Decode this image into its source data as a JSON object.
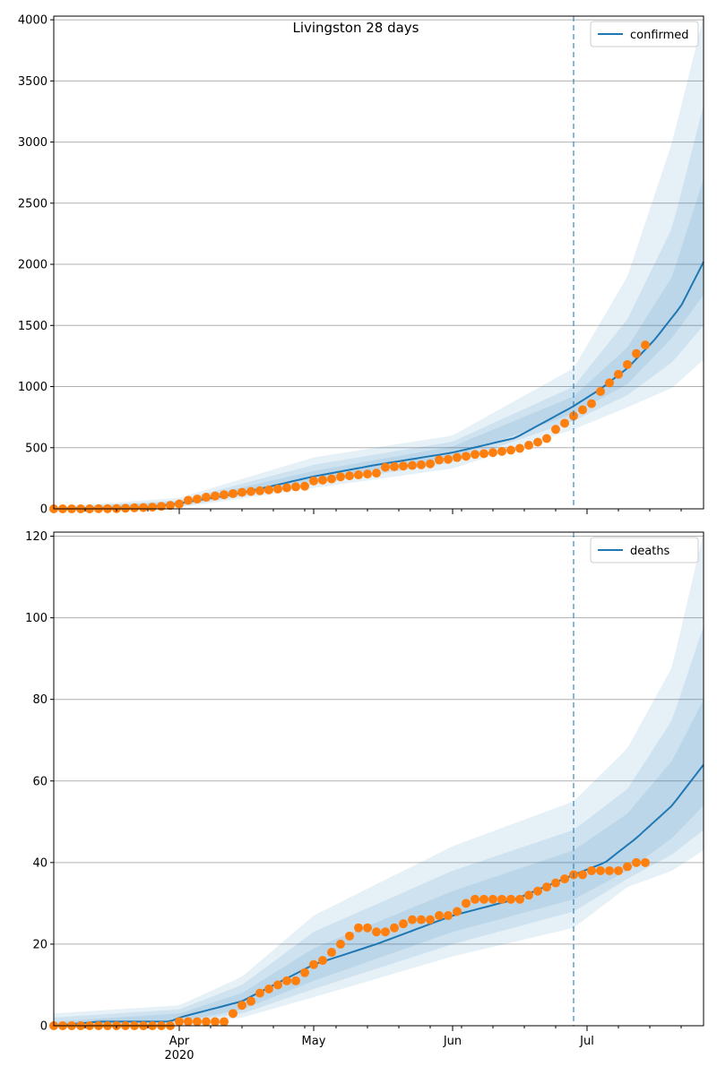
{
  "title": "Livingston 28 days",
  "chart_data": [
    {
      "type": "line",
      "title": "Livingston 28 days",
      "x_axis": {
        "type": "date",
        "range": [
          "2020-03-04",
          "2020-07-27"
        ],
        "ticks": [
          {
            "date": "2020-04-01",
            "label": "Apr",
            "sublabel": "2020"
          },
          {
            "date": "2020-05-01",
            "label": "May"
          },
          {
            "date": "2020-06-01",
            "label": "Jun"
          },
          {
            "date": "2020-07-01",
            "label": "Jul"
          }
        ]
      },
      "y_axis": {
        "range": [
          0,
          4030
        ],
        "ticks": [
          0,
          500,
          1000,
          1500,
          2000,
          2500,
          3000,
          3500,
          4000
        ],
        "grid": true
      },
      "vline_date": "2020-06-28",
      "legend": {
        "position": "top-right",
        "entries": [
          "confirmed"
        ]
      },
      "colors": {
        "line": "#1f77b4",
        "observed": "#ff7f0e",
        "band": "#1f77b4"
      },
      "model_points": [
        [
          "2020-03-04",
          1
        ],
        [
          "2020-03-25",
          12
        ],
        [
          "2020-04-01",
          45
        ],
        [
          "2020-04-15",
          130
        ],
        [
          "2020-05-01",
          265
        ],
        [
          "2020-05-15",
          360
        ],
        [
          "2020-06-01",
          460
        ],
        [
          "2020-06-15",
          580
        ],
        [
          "2020-06-28",
          840
        ],
        [
          "2020-07-04",
          980
        ],
        [
          "2020-07-10",
          1150
        ],
        [
          "2020-07-16",
          1380
        ],
        [
          "2020-07-22",
          1660
        ],
        [
          "2020-07-27",
          2020
        ]
      ],
      "bands": [
        {
          "upper": [
            [
              "2020-03-04",
              15
            ],
            [
              "2020-04-01",
              90
            ],
            [
              "2020-05-01",
              420
            ],
            [
              "2020-06-01",
              600
            ],
            [
              "2020-06-28",
              1150
            ],
            [
              "2020-07-10",
              1900
            ],
            [
              "2020-07-20",
              3000
            ],
            [
              "2020-07-27",
              4030
            ]
          ],
          "lower": [
            [
              "2020-03-04",
              0
            ],
            [
              "2020-04-01",
              10
            ],
            [
              "2020-05-01",
              170
            ],
            [
              "2020-06-01",
              330
            ],
            [
              "2020-06-28",
              650
            ],
            [
              "2020-07-10",
              830
            ],
            [
              "2020-07-20",
              990
            ],
            [
              "2020-07-27",
              1220
            ]
          ]
        },
        {
          "upper": [
            [
              "2020-03-04",
              8
            ],
            [
              "2020-04-01",
              70
            ],
            [
              "2020-05-01",
              360
            ],
            [
              "2020-06-01",
              550
            ],
            [
              "2020-06-28",
              1000
            ],
            [
              "2020-07-10",
              1550
            ],
            [
              "2020-07-20",
              2300
            ],
            [
              "2020-07-27",
              3300
            ]
          ],
          "lower": [
            [
              "2020-03-04",
              0
            ],
            [
              "2020-04-01",
              20
            ],
            [
              "2020-05-01",
              200
            ],
            [
              "2020-06-01",
              380
            ],
            [
              "2020-06-28",
              720
            ],
            [
              "2020-07-10",
              930
            ],
            [
              "2020-07-20",
              1200
            ],
            [
              "2020-07-27",
              1500
            ]
          ]
        },
        {
          "upper": [
            [
              "2020-03-04",
              4
            ],
            [
              "2020-04-01",
              55
            ],
            [
              "2020-05-01",
              310
            ],
            [
              "2020-06-01",
              510
            ],
            [
              "2020-06-28",
              920
            ],
            [
              "2020-07-10",
              1320
            ],
            [
              "2020-07-20",
              1900
            ],
            [
              "2020-07-27",
              2700
            ]
          ],
          "lower": [
            [
              "2020-03-04",
              0
            ],
            [
              "2020-04-01",
              30
            ],
            [
              "2020-05-01",
              230
            ],
            [
              "2020-06-01",
              420
            ],
            [
              "2020-06-28",
              780
            ],
            [
              "2020-07-10",
              1020
            ],
            [
              "2020-07-20",
              1400
            ],
            [
              "2020-07-27",
              1750
            ]
          ]
        }
      ],
      "observed": [
        [
          "2020-03-04",
          0
        ],
        [
          "2020-03-06",
          0
        ],
        [
          "2020-03-08",
          0
        ],
        [
          "2020-03-10",
          0
        ],
        [
          "2020-03-12",
          0
        ],
        [
          "2020-03-14",
          1
        ],
        [
          "2020-03-16",
          1
        ],
        [
          "2020-03-18",
          2
        ],
        [
          "2020-03-20",
          5
        ],
        [
          "2020-03-22",
          8
        ],
        [
          "2020-03-24",
          10
        ],
        [
          "2020-03-26",
          14
        ],
        [
          "2020-03-28",
          20
        ],
        [
          "2020-03-30",
          28
        ],
        [
          "2020-04-01",
          40
        ],
        [
          "2020-04-03",
          70
        ],
        [
          "2020-04-05",
          80
        ],
        [
          "2020-04-07",
          95
        ],
        [
          "2020-04-09",
          105
        ],
        [
          "2020-04-11",
          115
        ],
        [
          "2020-04-13",
          125
        ],
        [
          "2020-04-15",
          135
        ],
        [
          "2020-04-17",
          142
        ],
        [
          "2020-04-19",
          148
        ],
        [
          "2020-04-21",
          155
        ],
        [
          "2020-04-23",
          162
        ],
        [
          "2020-04-25",
          172
        ],
        [
          "2020-04-27",
          180
        ],
        [
          "2020-04-29",
          185
        ],
        [
          "2020-05-01",
          228
        ],
        [
          "2020-05-03",
          235
        ],
        [
          "2020-05-05",
          245
        ],
        [
          "2020-05-07",
          262
        ],
        [
          "2020-05-09",
          270
        ],
        [
          "2020-05-11",
          278
        ],
        [
          "2020-05-13",
          285
        ],
        [
          "2020-05-15",
          292
        ],
        [
          "2020-05-17",
          340
        ],
        [
          "2020-05-19",
          345
        ],
        [
          "2020-05-21",
          350
        ],
        [
          "2020-05-23",
          355
        ],
        [
          "2020-05-25",
          360
        ],
        [
          "2020-05-27",
          368
        ],
        [
          "2020-05-29",
          400
        ],
        [
          "2020-05-31",
          405
        ],
        [
          "2020-06-02",
          420
        ],
        [
          "2020-06-04",
          430
        ],
        [
          "2020-06-06",
          445
        ],
        [
          "2020-06-08",
          452
        ],
        [
          "2020-06-10",
          460
        ],
        [
          "2020-06-12",
          470
        ],
        [
          "2020-06-14",
          480
        ],
        [
          "2020-06-16",
          495
        ],
        [
          "2020-06-18",
          520
        ],
        [
          "2020-06-20",
          545
        ],
        [
          "2020-06-22",
          575
        ],
        [
          "2020-06-24",
          650
        ],
        [
          "2020-06-26",
          700
        ],
        [
          "2020-06-28",
          760
        ],
        [
          "2020-06-30",
          810
        ],
        [
          "2020-07-02",
          860
        ],
        [
          "2020-07-04",
          960
        ],
        [
          "2020-07-06",
          1030
        ],
        [
          "2020-07-08",
          1100
        ],
        [
          "2020-07-10",
          1180
        ],
        [
          "2020-07-12",
          1270
        ],
        [
          "2020-07-14",
          1340
        ]
      ]
    },
    {
      "type": "line",
      "x_axis": {
        "type": "date",
        "range": [
          "2020-03-04",
          "2020-07-27"
        ],
        "ticks": [
          {
            "date": "2020-04-01",
            "label": "Apr",
            "sublabel": "2020"
          },
          {
            "date": "2020-05-01",
            "label": "May"
          },
          {
            "date": "2020-06-01",
            "label": "Jun"
          },
          {
            "date": "2020-07-01",
            "label": "Jul"
          }
        ]
      },
      "y_axis": {
        "range": [
          0,
          121
        ],
        "ticks": [
          0,
          20,
          40,
          60,
          80,
          100,
          120
        ],
        "grid": true
      },
      "vline_date": "2020-06-28",
      "legend": {
        "position": "top-right",
        "entries": [
          "deaths"
        ]
      },
      "colors": {
        "line": "#1f77b4",
        "observed": "#ff7f0e",
        "band": "#1f77b4"
      },
      "model_points": [
        [
          "2020-03-04",
          0
        ],
        [
          "2020-03-14",
          1
        ],
        [
          "2020-03-30",
          1
        ],
        [
          "2020-04-01",
          2
        ],
        [
          "2020-04-15",
          6
        ],
        [
          "2020-05-01",
          15
        ],
        [
          "2020-05-15",
          20
        ],
        [
          "2020-06-01",
          27
        ],
        [
          "2020-06-15",
          31
        ],
        [
          "2020-06-28",
          37
        ],
        [
          "2020-07-05",
          40
        ],
        [
          "2020-07-12",
          46
        ],
        [
          "2020-07-20",
          54
        ],
        [
          "2020-07-27",
          64
        ]
      ],
      "bands": [
        {
          "upper": [
            [
              "2020-03-04",
              3
            ],
            [
              "2020-04-01",
              5
            ],
            [
              "2020-04-15",
              12
            ],
            [
              "2020-05-01",
              27
            ],
            [
              "2020-06-01",
              44
            ],
            [
              "2020-06-28",
              55
            ],
            [
              "2020-07-10",
              68
            ],
            [
              "2020-07-20",
              88
            ],
            [
              "2020-07-27",
              121
            ]
          ],
          "lower": [
            [
              "2020-03-04",
              0
            ],
            [
              "2020-04-01",
              0
            ],
            [
              "2020-04-15",
              2
            ],
            [
              "2020-05-01",
              7
            ],
            [
              "2020-06-01",
              17
            ],
            [
              "2020-06-28",
              24
            ],
            [
              "2020-07-10",
              34
            ],
            [
              "2020-07-20",
              38
            ],
            [
              "2020-07-27",
              43
            ]
          ]
        },
        {
          "upper": [
            [
              "2020-03-04",
              2
            ],
            [
              "2020-04-01",
              4
            ],
            [
              "2020-04-15",
              10
            ],
            [
              "2020-05-01",
              23
            ],
            [
              "2020-06-01",
              38
            ],
            [
              "2020-06-28",
              48
            ],
            [
              "2020-07-10",
              58
            ],
            [
              "2020-07-20",
              75
            ],
            [
              "2020-07-27",
              98
            ]
          ],
          "lower": [
            [
              "2020-03-04",
              0
            ],
            [
              "2020-04-01",
              1
            ],
            [
              "2020-04-15",
              3
            ],
            [
              "2020-05-01",
              9
            ],
            [
              "2020-06-01",
              20
            ],
            [
              "2020-06-28",
              28
            ],
            [
              "2020-07-10",
              36
            ],
            [
              "2020-07-20",
              42
            ],
            [
              "2020-07-27",
              48
            ]
          ]
        },
        {
          "upper": [
            [
              "2020-03-04",
              1
            ],
            [
              "2020-04-01",
              3
            ],
            [
              "2020-04-15",
              8
            ],
            [
              "2020-05-01",
              19
            ],
            [
              "2020-06-01",
              33
            ],
            [
              "2020-06-28",
              43
            ],
            [
              "2020-07-10",
              52
            ],
            [
              "2020-07-20",
              65
            ],
            [
              "2020-07-27",
              80
            ]
          ],
          "lower": [
            [
              "2020-03-04",
              0
            ],
            [
              "2020-04-01",
              1
            ],
            [
              "2020-04-15",
              4
            ],
            [
              "2020-05-01",
              11
            ],
            [
              "2020-06-01",
              23
            ],
            [
              "2020-06-28",
              31
            ],
            [
              "2020-07-10",
              38
            ],
            [
              "2020-07-20",
              46
            ],
            [
              "2020-07-27",
              54
            ]
          ]
        }
      ],
      "observed": [
        [
          "2020-03-04",
          0
        ],
        [
          "2020-03-06",
          0
        ],
        [
          "2020-03-08",
          0
        ],
        [
          "2020-03-10",
          0
        ],
        [
          "2020-03-12",
          0
        ],
        [
          "2020-03-14",
          0
        ],
        [
          "2020-03-16",
          0
        ],
        [
          "2020-03-18",
          0
        ],
        [
          "2020-03-20",
          0
        ],
        [
          "2020-03-22",
          0
        ],
        [
          "2020-03-24",
          0
        ],
        [
          "2020-03-26",
          0
        ],
        [
          "2020-03-28",
          0
        ],
        [
          "2020-03-30",
          0
        ],
        [
          "2020-04-01",
          1
        ],
        [
          "2020-04-03",
          1
        ],
        [
          "2020-04-05",
          1
        ],
        [
          "2020-04-07",
          1
        ],
        [
          "2020-04-09",
          1
        ],
        [
          "2020-04-11",
          1
        ],
        [
          "2020-04-13",
          3
        ],
        [
          "2020-04-15",
          5
        ],
        [
          "2020-04-17",
          6
        ],
        [
          "2020-04-19",
          8
        ],
        [
          "2020-04-21",
          9
        ],
        [
          "2020-04-23",
          10
        ],
        [
          "2020-04-25",
          11
        ],
        [
          "2020-04-27",
          11
        ],
        [
          "2020-04-29",
          13
        ],
        [
          "2020-05-01",
          15
        ],
        [
          "2020-05-03",
          16
        ],
        [
          "2020-05-05",
          18
        ],
        [
          "2020-05-07",
          20
        ],
        [
          "2020-05-09",
          22
        ],
        [
          "2020-05-11",
          24
        ],
        [
          "2020-05-13",
          24
        ],
        [
          "2020-05-15",
          23
        ],
        [
          "2020-05-17",
          23
        ],
        [
          "2020-05-19",
          24
        ],
        [
          "2020-05-21",
          25
        ],
        [
          "2020-05-23",
          26
        ],
        [
          "2020-05-25",
          26
        ],
        [
          "2020-05-27",
          26
        ],
        [
          "2020-05-29",
          27
        ],
        [
          "2020-05-31",
          27
        ],
        [
          "2020-06-02",
          28
        ],
        [
          "2020-06-04",
          30
        ],
        [
          "2020-06-06",
          31
        ],
        [
          "2020-06-08",
          31
        ],
        [
          "2020-06-10",
          31
        ],
        [
          "2020-06-12",
          31
        ],
        [
          "2020-06-14",
          31
        ],
        [
          "2020-06-16",
          31
        ],
        [
          "2020-06-18",
          32
        ],
        [
          "2020-06-20",
          33
        ],
        [
          "2020-06-22",
          34
        ],
        [
          "2020-06-24",
          35
        ],
        [
          "2020-06-26",
          36
        ],
        [
          "2020-06-28",
          37
        ],
        [
          "2020-06-30",
          37
        ],
        [
          "2020-07-02",
          38
        ],
        [
          "2020-07-04",
          38
        ],
        [
          "2020-07-06",
          38
        ],
        [
          "2020-07-08",
          38
        ],
        [
          "2020-07-10",
          39
        ],
        [
          "2020-07-12",
          40
        ],
        [
          "2020-07-14",
          40
        ]
      ]
    }
  ]
}
